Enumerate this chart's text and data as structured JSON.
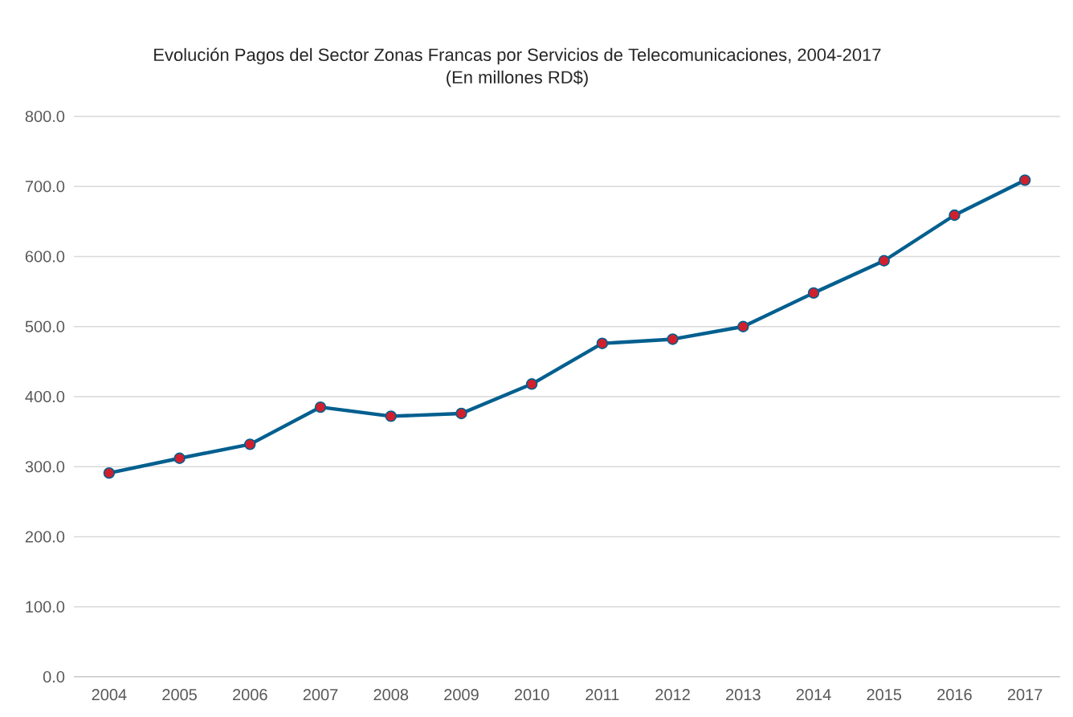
{
  "chart_data": {
    "type": "line",
    "title": "Evolución Pagos del Sector Zonas Francas por Servicios de Telecomunicaciones, 2004-2017",
    "subtitle": "(En millones RD$)",
    "categories": [
      "2004",
      "2005",
      "2006",
      "2007",
      "2008",
      "2009",
      "2010",
      "2011",
      "2012",
      "2013",
      "2014",
      "2015",
      "2016",
      "2017"
    ],
    "values": [
      291,
      312,
      332,
      385,
      372,
      376,
      418,
      476,
      482,
      500,
      548,
      594,
      659,
      709
    ],
    "color": "#005f8f",
    "marker": "circle",
    "grid": "y",
    "ylim": [
      0,
      800
    ],
    "yticks": [
      {
        "value": 0,
        "label": "0.0"
      },
      {
        "value": 100,
        "label": "100.0"
      },
      {
        "value": 200,
        "label": "200.0"
      },
      {
        "value": 300,
        "label": "300.0"
      },
      {
        "value": 400,
        "label": "400.0"
      },
      {
        "value": 500,
        "label": "500.0"
      },
      {
        "value": 600,
        "label": "600.0"
      },
      {
        "value": 700,
        "label": "700.0"
      },
      {
        "value": 800,
        "label": "800.0"
      }
    ]
  }
}
